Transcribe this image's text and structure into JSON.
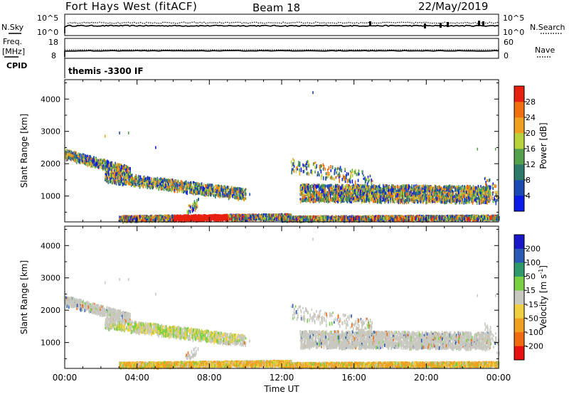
{
  "header": {
    "station": "Fort Hays West (fitACF)",
    "beam": "Beam 18",
    "date": "22/May/2019"
  },
  "summary": {
    "nsky": {
      "label": "N.Sky",
      "ticks": [
        "10^5",
        "10^0"
      ]
    },
    "nsearch": {
      "label": "N.Search",
      "ticks": [
        "10^5",
        "10^0"
      ]
    },
    "freq": {
      "label_top": "Freq.",
      "label_bottom": "[MHz]",
      "ticks": [
        "18",
        "8"
      ]
    },
    "nave": {
      "label": "Nave",
      "ticks": [
        "60",
        "0"
      ]
    },
    "cpid": {
      "label": "CPID",
      "program": "themis -3300 IF"
    }
  },
  "chart_data": [
    {
      "type": "heatmap",
      "title": "",
      "quantity": "Power",
      "units": "dB",
      "ylabel": "Slant Range [km]",
      "yticks": [
        "1000",
        "2000",
        "3000",
        "4000"
      ],
      "ylim": [
        200,
        4600
      ],
      "xlim_hours": [
        0,
        24
      ],
      "colorbar_label": "Power [dB]",
      "colorbar_ticks": [
        "4",
        "8",
        "12",
        "16",
        "20",
        "24",
        "28"
      ],
      "colorbar_colors": [
        "#0a1be6",
        "#1c4ab4",
        "#2e7a6a",
        "#55a04c",
        "#b8d23c",
        "#f0a020",
        "#f07010",
        "#e82010"
      ],
      "echo_regions": [
        {
          "t_start": 0.0,
          "t_end": 3.5,
          "range_start": 2300,
          "range_end": 1700,
          "desc": "sloping band"
        },
        {
          "t_start": 2.5,
          "t_end": 10.0,
          "range_start": 1600,
          "range_end": 1050,
          "desc": "mid range band"
        },
        {
          "t_start": 3.0,
          "t_end": 12.5,
          "range_start": 250,
          "range_end": 500,
          "desc": "near range scatter"
        },
        {
          "t_start": 13.0,
          "t_end": 24.0,
          "range_start": 700,
          "range_end": 1500,
          "desc": "afternoon band"
        },
        {
          "t_start": 12.0,
          "t_end": 24.0,
          "range_start": 250,
          "range_end": 400,
          "desc": "near range scatter"
        }
      ]
    },
    {
      "type": "heatmap",
      "title": "",
      "quantity": "Velocity",
      "units": "m s^-1",
      "ylabel": "Slant Range [km]",
      "yticks": [
        "1000",
        "2000",
        "3000",
        "4000"
      ],
      "ylim": [
        200,
        4600
      ],
      "xlim_hours": [
        0,
        24
      ],
      "colorbar_label": "Velocity [m s",
      "colorbar_label_sup": "-1",
      "colorbar_label_close": "]",
      "colorbar_ticks": [
        "200",
        "100",
        "50",
        "15",
        "-15",
        "-50",
        "-100",
        "-200"
      ],
      "colorbar_colors": [
        "#1818c8",
        "#2a5ab4",
        "#2e9a6a",
        "#7ad042",
        "#c8c8c0",
        "#f0d040",
        "#f0a020",
        "#f06a10",
        "#e81010"
      ],
      "echo_regions": [
        {
          "t_start": 0.0,
          "t_end": 3.5,
          "range_start": 2300,
          "range_end": 1700,
          "desc": "mostly near zero velocity"
        },
        {
          "t_start": 2.5,
          "t_end": 10.0,
          "range_start": 1600,
          "range_end": 1050,
          "desc": "mixed green and gray"
        },
        {
          "t_start": 3.0,
          "t_end": 24.0,
          "range_start": 250,
          "range_end": 450,
          "desc": "orange negative velocity"
        },
        {
          "t_start": 13.0,
          "t_end": 24.0,
          "range_start": 700,
          "range_end": 1500,
          "desc": "mostly gray"
        }
      ]
    }
  ],
  "xaxis": {
    "label": "Time UT",
    "ticks": [
      "00:00",
      "04:00",
      "08:00",
      "12:00",
      "16:00",
      "20:00",
      "00:00"
    ]
  },
  "colors": {
    "ground_scatter": "#c8c8c0",
    "frame": "#000000"
  }
}
